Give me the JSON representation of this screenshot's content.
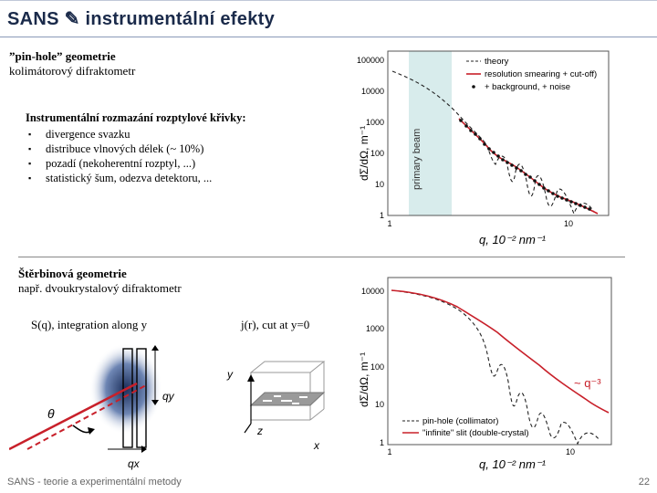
{
  "header": {
    "title": "SANS ✎ instrumentální efekty"
  },
  "pinhole": {
    "heading": "”pin-hole” geometrie",
    "subheading": "kolimátorový difraktometr",
    "box_title": "Instrumentální rozmazání rozptylové křivky:",
    "bullets": [
      "divergence svazku",
      "distribuce vlnových délek (~ 10%)",
      "pozadí (nekoherentní rozptyl, ...)",
      "statistický šum, odezva detektoru, ..."
    ]
  },
  "slit": {
    "heading": "Štěrbinová geometrie",
    "subheading": "např. dvoukrystalový difraktometr",
    "s_label": "S(q), integration along y",
    "j_label": "j(r), cut at y=0",
    "theta": "θ",
    "qx": "qx",
    "qy": "qy",
    "axis_y": "y",
    "axis_z": "z",
    "axis_x": "x"
  },
  "chart_top": {
    "primary_beam": "primary beam",
    "y_ticks": [
      "100000",
      "10000",
      "1000",
      "100",
      "10",
      "1"
    ],
    "x_ticks": [
      "1",
      "10"
    ],
    "ylabel": "dΣ/dΩ, m⁻¹",
    "xlabel": "q, 10⁻² nm⁻¹",
    "legend": [
      "theory",
      "resolution smearing + cut-off)",
      "+ background,  + noise"
    ]
  },
  "chart_bottom": {
    "y_ticks": [
      "10000",
      "1000",
      "100",
      "10",
      "1"
    ],
    "x_ticks": [
      "1",
      "10"
    ],
    "ylabel": "dΣ/dΩ, m⁻¹",
    "xlabel": "q, 10⁻² nm⁻¹",
    "annotation": "~ q⁻³",
    "legend": [
      "pin-hole (collimator)",
      "\"infinite\" slit (double-crystal)"
    ]
  },
  "colors": {
    "accent_red": "#c8202a",
    "beam_band": "#d8ecec",
    "title": "#1a2a4a"
  },
  "footer": {
    "text": "SANS - teorie a experimentální metody",
    "page": "22"
  }
}
